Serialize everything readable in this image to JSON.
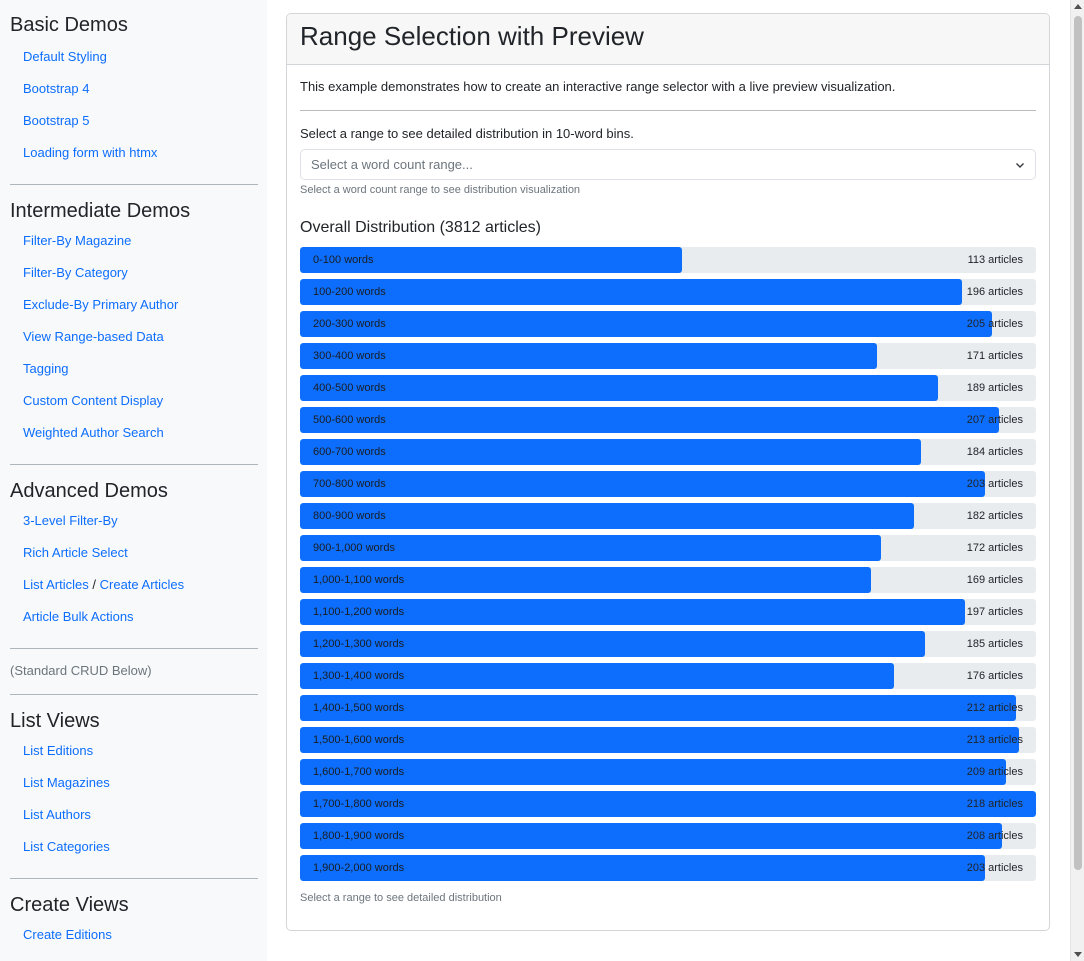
{
  "sidebar": {
    "sections": [
      {
        "title": "Basic Demos",
        "items": [
          "Default Styling",
          "Bootstrap 4",
          "Bootstrap 5",
          "Loading form with htmx"
        ]
      },
      {
        "title": "Intermediate Demos",
        "items": [
          "Filter-By Magazine",
          "Filter-By Category",
          "Exclude-By Primary Author",
          "View Range-based Data",
          "Tagging",
          "Custom Content Display",
          "Weighted Author Search"
        ]
      },
      {
        "title": "Advanced Demos",
        "items": [
          "3-Level Filter-By",
          "Rich Article Select",
          "List Articles",
          "Article Bulk Actions"
        ],
        "list_articles_sep": "/",
        "create_articles": "Create Articles"
      }
    ],
    "note": "(Standard CRUD Below)",
    "list_views": {
      "title": "List Views",
      "items": [
        "List Editions",
        "List Magazines",
        "List Authors",
        "List Categories"
      ]
    },
    "create_views": {
      "title": "Create Views",
      "items": [
        "Create Editions"
      ]
    }
  },
  "main": {
    "title": "Range Selection with Preview",
    "intro": "This example demonstrates how to create an interactive range selector with a live preview visualization.",
    "prompt": "Select a range to see detailed distribution in 10-word bins.",
    "select_placeholder": "Select a word count range...",
    "select_help": "Select a word count range to see distribution visualization",
    "distribution_title": "Overall Distribution (3812 articles)",
    "footer_hint": "Select a range to see detailed distribution",
    "accent_color": "#0d6efd"
  },
  "chart_data": {
    "type": "bar",
    "orientation": "horizontal",
    "max": 218,
    "count_suffix": "articles",
    "categories": [
      "0-100 words",
      "100-200 words",
      "200-300 words",
      "300-400 words",
      "400-500 words",
      "500-600 words",
      "600-700 words",
      "700-800 words",
      "800-900 words",
      "900-1,000 words",
      "1,000-1,100 words",
      "1,100-1,200 words",
      "1,200-1,300 words",
      "1,300-1,400 words",
      "1,400-1,500 words",
      "1,500-1,600 words",
      "1,600-1,700 words",
      "1,700-1,800 words",
      "1,800-1,900 words",
      "1,900-2,000 words"
    ],
    "values": [
      113,
      196,
      205,
      171,
      189,
      207,
      184,
      203,
      182,
      172,
      169,
      197,
      185,
      176,
      212,
      213,
      209,
      218,
      208,
      203
    ]
  }
}
